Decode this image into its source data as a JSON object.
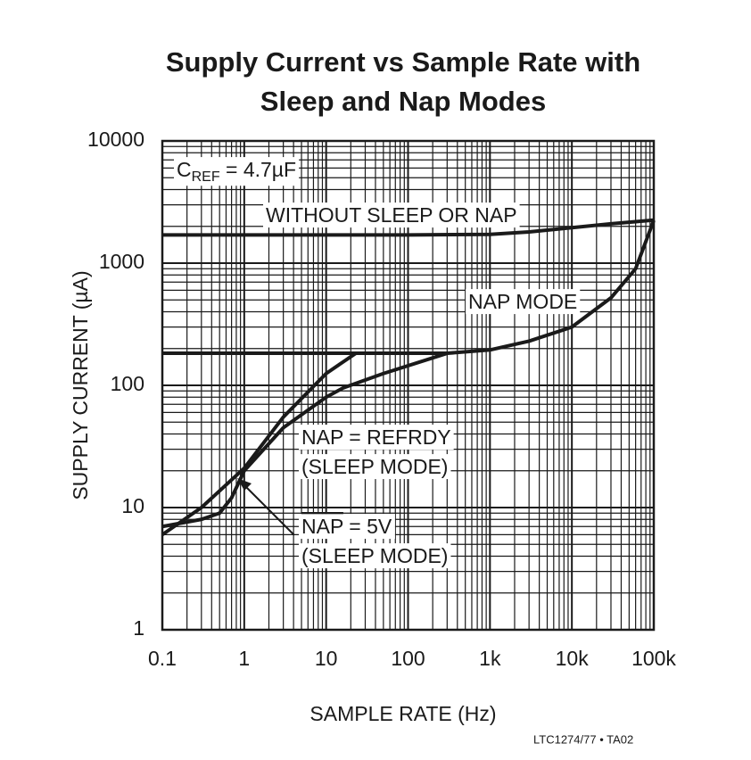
{
  "chart_data": {
    "type": "line",
    "title": "Supply Current vs Sample Rate with",
    "title_line2": "Sleep and Nap Modes",
    "x_label": "SAMPLE RATE (Hz)",
    "y_label": "SUPPLY CURRENT (µA)",
    "footer": "LTC1274/77 • TA02",
    "log_x": true,
    "log_y": true,
    "grid": true,
    "minor_grid": true,
    "xlim": [
      0.1,
      100000
    ],
    "ylim": [
      1,
      10000
    ],
    "xticks": [
      0.1,
      1,
      10,
      100,
      {
        "value": 1000,
        "label": "1k"
      },
      {
        "value": 10000,
        "label": "10k"
      },
      {
        "value": 100000,
        "label": "100k"
      }
    ],
    "yticks": [
      1,
      10,
      100,
      1000,
      10000
    ],
    "annotations": {
      "cref": {
        "c": "C",
        "sub": "REF",
        "rest": " = 4.7µF"
      },
      "without": "WITHOUT SLEEP OR NAP",
      "nap_mode": "NAP MODE",
      "refrdy": "NAP = REFRDY",
      "refrdy_mode": "(SLEEP MODE)",
      "nap5v_nap": "NAP",
      "nap5v_rest": " = 5V",
      "nap5v_mode": "(SLEEP MODE)"
    },
    "series": [
      {
        "color": "#1a1a1a",
        "x": [
          0.1,
          1,
          10,
          100,
          1000,
          3000,
          10000,
          30000,
          100000
        ],
        "values": [
          1700,
          1700,
          1700,
          1700,
          1720,
          1800,
          1950,
          2100,
          2250
        ]
      },
      {
        "color": "#1a1a1a",
        "x": [
          0.1,
          300,
          1000,
          3000,
          10000,
          30000,
          60000,
          100000
        ],
        "values": [
          183,
          183,
          195,
          230,
          300,
          520,
          900,
          2240
        ]
      },
      {
        "color": "#1a1a1a",
        "x": [
          0.1,
          0.3,
          1,
          3,
          10,
          23
        ],
        "values": [
          6,
          10,
          21,
          55,
          125,
          183
        ]
      },
      {
        "color": "#1a1a1a",
        "x": [
          0.1,
          0.3,
          0.5,
          0.7,
          1,
          3,
          10,
          16,
          50,
          300
        ],
        "values": [
          7,
          8,
          9,
          12,
          20,
          45,
          80,
          95,
          125,
          183
        ]
      }
    ]
  }
}
